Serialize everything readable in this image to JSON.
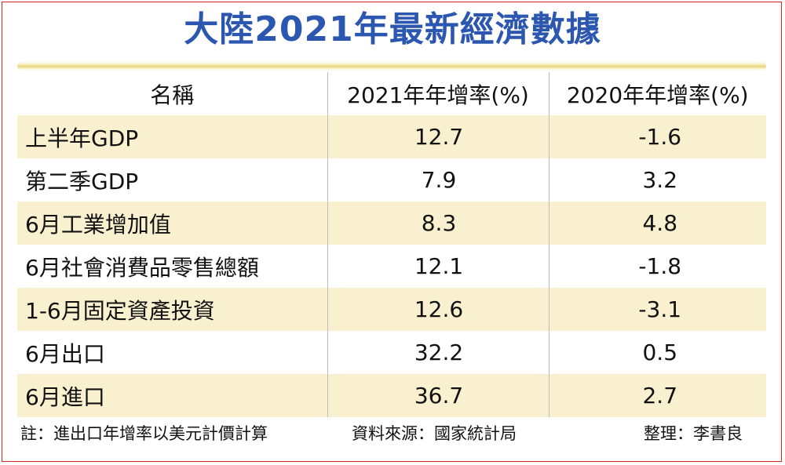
{
  "title": "大陸2021年最新經濟數據",
  "table": {
    "headers": [
      "名稱",
      "2021年年增率(%)",
      "2020年年增率(%)"
    ],
    "rows": [
      {
        "name": "上半年GDP",
        "v2021": "12.7",
        "v2020": "-1.6"
      },
      {
        "name": "第二季GDP",
        "v2021": "7.9",
        "v2020": "3.2"
      },
      {
        "name": "6月工業增加值",
        "v2021": "8.3",
        "v2020": "4.8"
      },
      {
        "name": "6月社會消費品零售總額",
        "v2021": "12.1",
        "v2020": "-1.8"
      },
      {
        "name": "1-6月固定資產投資",
        "v2021": "12.6",
        "v2020": "-3.1"
      },
      {
        "name": "6月出口",
        "v2021": "32.2",
        "v2020": "0.5"
      },
      {
        "name": "6月進口",
        "v2021": "36.7",
        "v2020": "2.7"
      }
    ]
  },
  "footer": {
    "note": "註：進出口年增率以美元計價計算",
    "source": "資料來源：國家統計局",
    "credit": "整理：李書良"
  },
  "colors": {
    "title": "#2c57b0",
    "row_shade": "#f8f0cf",
    "border": "#d9251c"
  }
}
